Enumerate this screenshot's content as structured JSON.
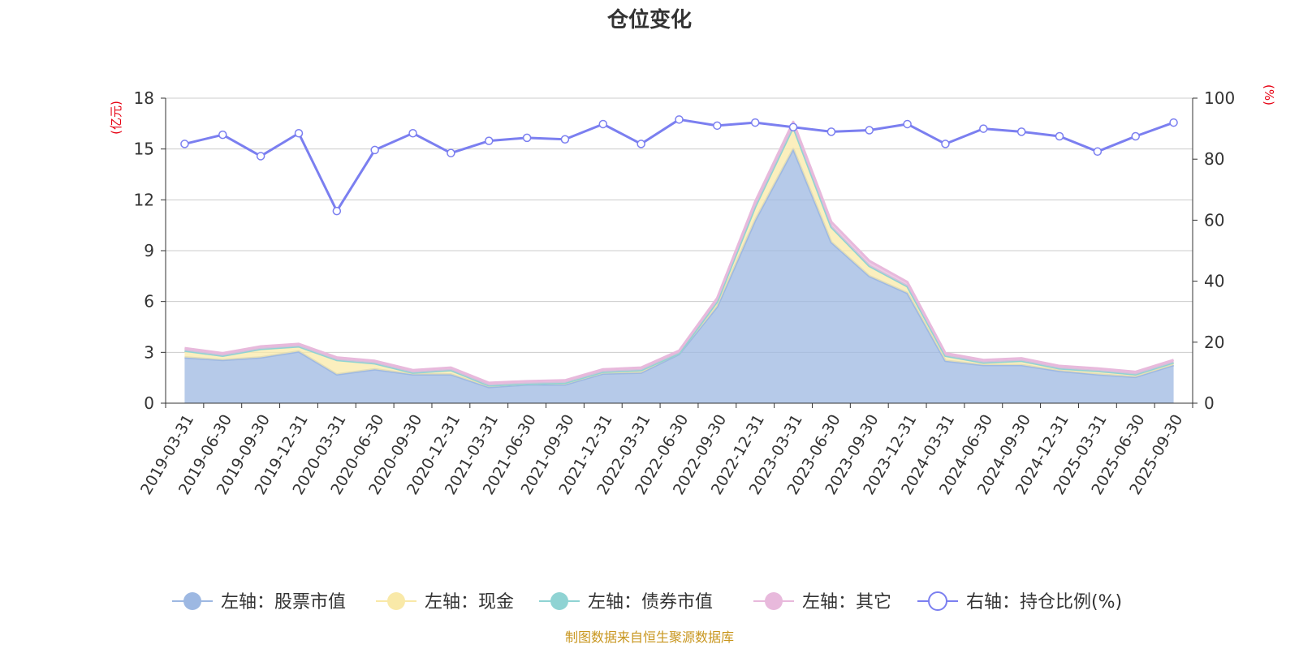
{
  "chart_data": {
    "type": "area",
    "title": "仓位变化",
    "left_axis_unit": "(亿元)",
    "right_axis_unit": "(%)",
    "ylim_left": [
      0,
      18
    ],
    "yticks_left": [
      0,
      3,
      6,
      9,
      12,
      15,
      18
    ],
    "ylim_right": [
      0,
      100
    ],
    "yticks_right": [
      0,
      20,
      40,
      60,
      80,
      100
    ],
    "grid": true,
    "legend_position": "bottom",
    "source": "制图数据来自恒生聚源数据库",
    "categories": [
      "2019-03-31",
      "2019-06-30",
      "2019-09-30",
      "2019-12-31",
      "2020-03-31",
      "2020-06-30",
      "2020-09-30",
      "2020-12-31",
      "2021-03-31",
      "2021-06-30",
      "2021-09-30",
      "2021-12-31",
      "2022-03-31",
      "2022-06-30",
      "2022-09-30",
      "2022-12-31",
      "2023-03-31",
      "2023-06-30",
      "2023-09-30",
      "2023-12-31",
      "2024-03-31",
      "2024-06-30",
      "2024-09-30",
      "2024-12-31",
      "2025-03-31",
      "2025-06-30",
      "2025-09-30"
    ],
    "series": [
      {
        "name": "左轴：股票市值",
        "axis": "left",
        "stacked": true,
        "color": "#9db8e2",
        "values": [
          2.7,
          2.55,
          2.7,
          3.05,
          1.7,
          2.0,
          1.7,
          1.7,
          0.95,
          1.1,
          1.1,
          1.75,
          1.8,
          2.9,
          5.7,
          10.8,
          15.0,
          9.5,
          7.5,
          6.5,
          2.5,
          2.25,
          2.25,
          1.9,
          1.7,
          1.55,
          2.25
        ]
      },
      {
        "name": "左轴：现金",
        "axis": "left",
        "stacked": true,
        "color": "#f9e9a8",
        "values": [
          0.4,
          0.25,
          0.5,
          0.3,
          0.85,
          0.35,
          0.1,
          0.25,
          0.1,
          0.05,
          0.1,
          0.1,
          0.15,
          0.05,
          0.3,
          0.8,
          1.3,
          0.9,
          0.6,
          0.4,
          0.3,
          0.15,
          0.25,
          0.15,
          0.2,
          0.15,
          0.15
        ]
      },
      {
        "name": "左轴：债券市值",
        "axis": "left",
        "stacked": true,
        "color": "#8fd3d3",
        "values": [
          0,
          0,
          0,
          0,
          0,
          0,
          0,
          0,
          0,
          0,
          0,
          0,
          0,
          0,
          0,
          0,
          0,
          0,
          0,
          0,
          0,
          0,
          0,
          0,
          0,
          0,
          0
        ]
      },
      {
        "name": "左轴：其它",
        "axis": "left",
        "stacked": true,
        "color": "#e8b9dc",
        "values": [
          0.15,
          0.15,
          0.15,
          0.15,
          0.15,
          0.15,
          0.15,
          0.15,
          0.15,
          0.15,
          0.15,
          0.15,
          0.15,
          0.15,
          0.2,
          0.3,
          0.3,
          0.3,
          0.3,
          0.25,
          0.15,
          0.15,
          0.15,
          0.15,
          0.15,
          0.15,
          0.15
        ]
      },
      {
        "name": "右轴：持仓比例(%)",
        "axis": "right",
        "stacked": false,
        "color": "#7b7ff0",
        "values": [
          85,
          88,
          81,
          88.5,
          63,
          83,
          88.5,
          82,
          86,
          87,
          86.5,
          91.5,
          85,
          93,
          91,
          92,
          90.5,
          89,
          89.5,
          91.5,
          85,
          90,
          89,
          87.5,
          82.5,
          87.5,
          92
        ]
      }
    ]
  }
}
